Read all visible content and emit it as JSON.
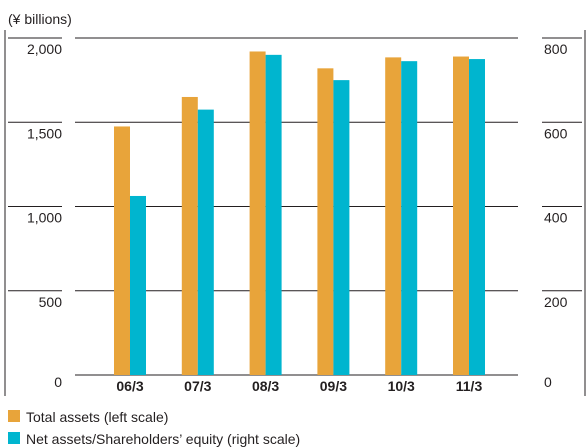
{
  "chart_data": {
    "type": "bar",
    "unit_label": "(¥ billions)",
    "categories": [
      "06/3",
      "07/3",
      "08/3",
      "09/3",
      "10/3",
      "11/3"
    ],
    "series": [
      {
        "name": "Total assets (left scale)",
        "axis": "left",
        "color": "#e8a43a",
        "values": [
          1475,
          1650,
          1920,
          1820,
          1885,
          1890
        ]
      },
      {
        "name": "Net assets/Shareholders’ equity (right scale)",
        "axis": "right",
        "color": "#00b5cf",
        "values": [
          425,
          630,
          760,
          700,
          745,
          750
        ]
      }
    ],
    "left_axis": {
      "ylim": [
        0,
        2000
      ],
      "ticks": [
        "0",
        "500",
        "1,000",
        "1,500",
        "2,000"
      ]
    },
    "right_axis": {
      "ylim": [
        0,
        800
      ],
      "ticks": [
        "0",
        "200",
        "400",
        "600",
        "800"
      ]
    },
    "grid": true,
    "legend_position": "bottom-left"
  }
}
